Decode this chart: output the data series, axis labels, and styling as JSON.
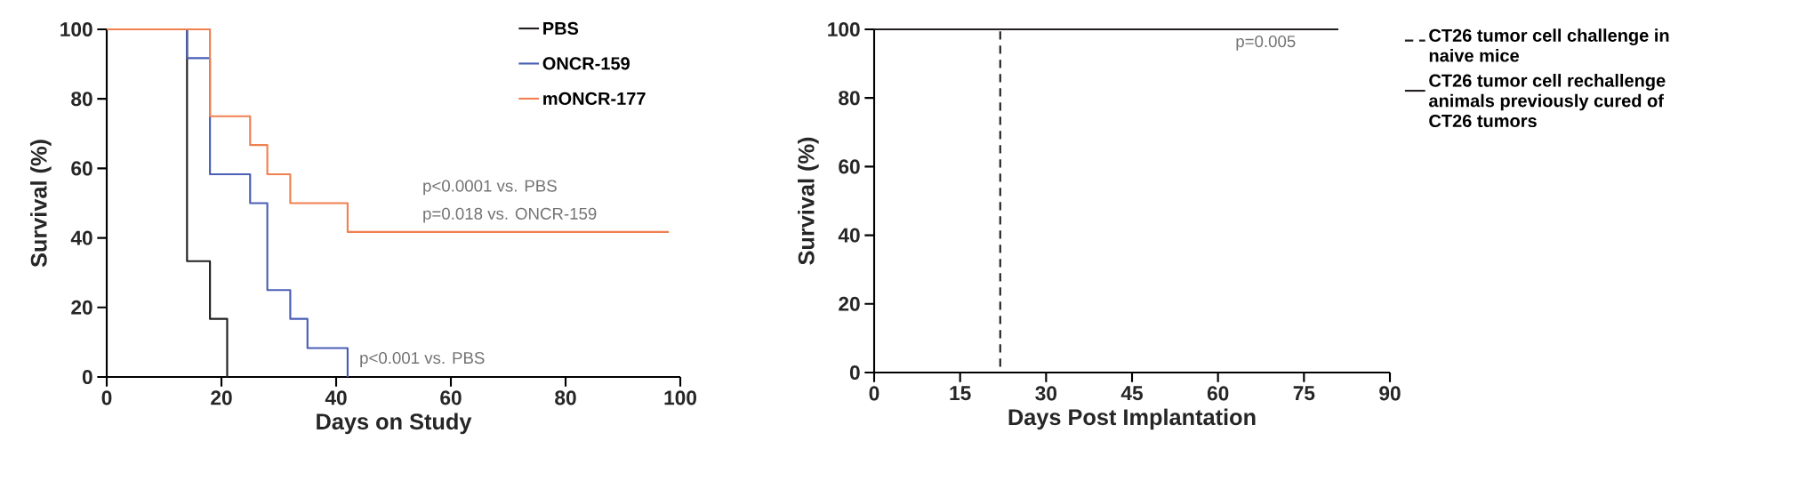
{
  "chart_data": [
    {
      "type": "step",
      "xlabel": "Days on Study",
      "ylabel": "Survival (%)",
      "xlim": [
        0,
        100
      ],
      "ylim": [
        0,
        100
      ],
      "xticks": [
        0,
        20,
        40,
        60,
        80,
        100
      ],
      "yticks": [
        0,
        20,
        40,
        60,
        80,
        100
      ],
      "legend": "top right",
      "grid": false,
      "series": [
        {
          "name": "PBS",
          "color": "#231f20",
          "x": [
            0,
            14,
            18,
            21
          ],
          "values": [
            100,
            33.3,
            16.7,
            0
          ]
        },
        {
          "name": "ONCR-159",
          "color": "#4a5fb5",
          "x": [
            0,
            14,
            18,
            25,
            28,
            32,
            35,
            42
          ],
          "values": [
            100,
            91.7,
            58.3,
            50,
            25,
            16.7,
            8.3,
            0
          ]
        },
        {
          "name": "mONCR-177",
          "color": "#f08050",
          "x": [
            0,
            18,
            25,
            28,
            32,
            42,
            98
          ],
          "values": [
            100,
            75,
            66.7,
            58.3,
            50,
            41.7,
            41.7
          ]
        }
      ],
      "annotations": [
        "p<0.0001 vs. PBS",
        "p=0.018 vs. ONCR-159",
        "p<0.001 vs. PBS"
      ]
    },
    {
      "type": "step",
      "xlabel": "Days Post Implantation",
      "ylabel": "Survival (%)",
      "xlim": [
        0,
        90
      ],
      "ylim": [
        0,
        100
      ],
      "xticks": [
        0,
        15,
        30,
        45,
        60,
        75,
        90
      ],
      "yticks": [
        0,
        20,
        40,
        60,
        80,
        100
      ],
      "legend": "right",
      "grid": false,
      "series": [
        {
          "name": "CT26 tumor cell challenge in naive mice",
          "color": "#231f20",
          "line_style": "dashed",
          "x": [
            0,
            22
          ],
          "values": [
            100,
            0
          ]
        },
        {
          "name": "CT26 tumor cell rechallenge animals previously cured of CT26 tumors",
          "color": "#231f20",
          "line_style": "solid",
          "x": [
            0,
            81
          ],
          "values": [
            100,
            100
          ]
        }
      ],
      "annotations": [
        "p=0.005"
      ]
    }
  ]
}
